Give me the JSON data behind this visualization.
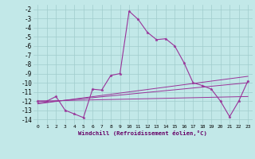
{
  "xlabel": "Windchill (Refroidissement éolien,°C)",
  "background_color": "#c2e8e8",
  "grid_color": "#a0cccc",
  "line_color": "#993399",
  "xlim": [
    -0.5,
    23.5
  ],
  "ylim": [
    -14.5,
    -1.5
  ],
  "xticks": [
    0,
    1,
    2,
    3,
    4,
    5,
    6,
    7,
    8,
    9,
    10,
    11,
    12,
    13,
    14,
    15,
    16,
    17,
    18,
    19,
    20,
    21,
    22,
    23
  ],
  "yticks": [
    -2,
    -3,
    -4,
    -5,
    -6,
    -7,
    -8,
    -9,
    -10,
    -11,
    -12,
    -13,
    -14
  ],
  "main_x": [
    0,
    1,
    2,
    3,
    4,
    5,
    6,
    7,
    8,
    9,
    10,
    11,
    12,
    13,
    14,
    15,
    16,
    17,
    18,
    19,
    20,
    21,
    22,
    23
  ],
  "main_y": [
    -12,
    -12,
    -11.5,
    -13,
    -13.4,
    -13.8,
    -10.7,
    -10.8,
    -9.2,
    -9.0,
    -2.2,
    -3.1,
    -4.5,
    -5.3,
    -5.2,
    -6.0,
    -7.8,
    -10.0,
    -10.3,
    -10.7,
    -12.0,
    -13.7,
    -12.0,
    -9.8
  ],
  "line2_x": [
    0,
    23
  ],
  "line2_y": [
    -12.0,
    -11.5
  ],
  "line3_x": [
    0,
    23
  ],
  "line3_y": [
    -12.2,
    -10.0
  ],
  "line4_x": [
    0,
    23
  ],
  "line4_y": [
    -12.3,
    -9.3
  ]
}
